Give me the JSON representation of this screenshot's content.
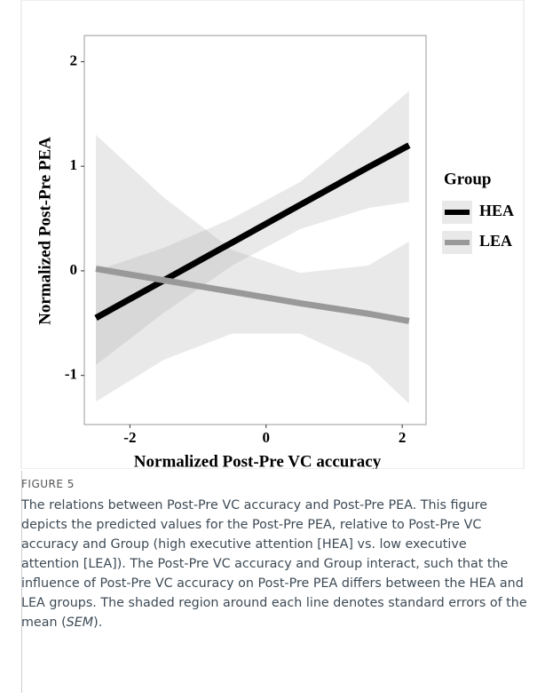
{
  "chart_data": {
    "type": "line",
    "xlabel": "Normalized Post-Pre VC accuracy",
    "ylabel": "Normalized Post-Pre PEA",
    "legend_title": "Group",
    "legend": "right",
    "x": [
      -2.5,
      -1.5,
      -0.5,
      0.5,
      1.5,
      2.1
    ],
    "series": [
      {
        "name": "HEA",
        "color": "#000000",
        "values": [
          -0.45,
          -0.09,
          0.27,
          0.63,
          0.99,
          1.2
        ],
        "lower": [
          -0.9,
          -0.4,
          0.05,
          0.4,
          0.6,
          0.66
        ],
        "upper": [
          0.0,
          0.22,
          0.5,
          0.85,
          1.38,
          1.72
        ]
      },
      {
        "name": "LEA",
        "color": "#999999",
        "values": [
          0.02,
          -0.09,
          -0.2,
          -0.31,
          -0.41,
          -0.48
        ],
        "lower": [
          -1.25,
          -0.85,
          -0.6,
          -0.6,
          -0.9,
          -1.27
        ],
        "upper": [
          1.3,
          0.7,
          0.2,
          -0.02,
          0.05,
          0.28
        ]
      }
    ],
    "band_color": "#999999",
    "xlim": [
      -2.67,
      2.35
    ],
    "xticks": [
      -2,
      0,
      2
    ],
    "ylim": [
      -1.47,
      2.25
    ],
    "yticks": [
      -1,
      0,
      1,
      2
    ],
    "grid": false
  },
  "caption": {
    "label": "FIGURE 5",
    "text_before": "The relations between Post-Pre VC accuracy and Post-Pre PEA. This figure depicts the predicted values for the Post-Pre PEA, relative to Post-Pre VC accuracy and Group (high executive attention [HEA] vs. low executive attention [LEA]). The Post-Pre VC accuracy and Group interact, such that the influence of Post-Pre VC accuracy on Post-Pre PEA differs between the HEA and LEA groups. The shaded region around each line denotes standard errors of the mean (",
    "text_italic": "SEM",
    "text_after": ")."
  }
}
